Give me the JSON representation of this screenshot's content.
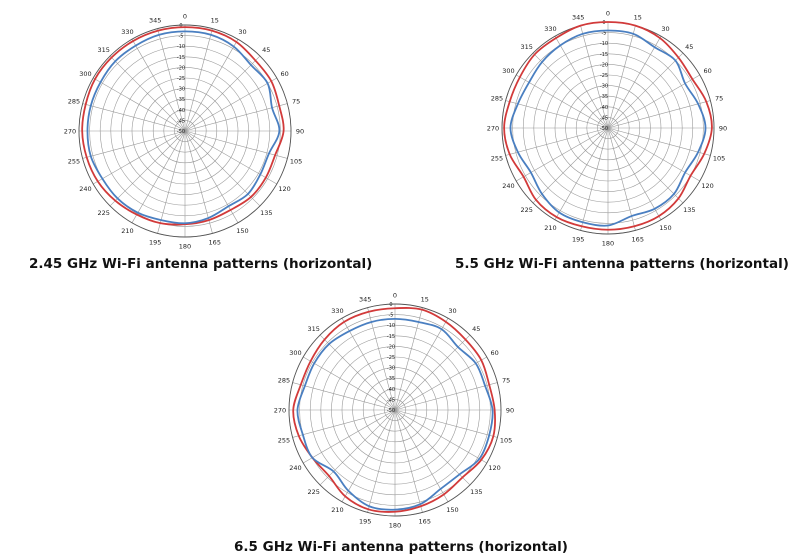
{
  "charts": {
    "0": {
      "caption": "2.45 GHz Wi-Fi antenna patterns (horizontal)"
    },
    "1": {
      "caption": "5.5 GHz Wi-Fi antenna patterns (horizontal)"
    },
    "2": {
      "caption": "6.5 GHz Wi-Fi antenna patterns (horizontal)"
    }
  },
  "chart_data": [
    {
      "type": "line",
      "subtype": "polar",
      "title": "2.45 GHz Wi-Fi antenna patterns (horizontal)",
      "angles_deg": [
        0,
        15,
        30,
        45,
        60,
        75,
        90,
        105,
        120,
        135,
        150,
        165,
        180,
        195,
        210,
        225,
        240,
        255,
        270,
        285,
        300,
        315,
        330,
        345
      ],
      "radial_ticks": [
        0,
        -5,
        -10,
        -15,
        -20,
        -25,
        -30,
        -35,
        -40,
        -45,
        -50
      ],
      "rlim": [
        -50,
        0
      ],
      "grid": true,
      "colors": [
        "#d23a3a",
        "#4a7fc1"
      ],
      "series": [
        {
          "values": [
            -1,
            -1,
            -1.5,
            -3,
            -3,
            -4,
            -3.5,
            -6,
            -6,
            -6,
            -7,
            -6.5,
            -6,
            -5,
            -4.5,
            -3.5,
            -2.5,
            -2,
            -1.5,
            -1.5,
            -1,
            -1,
            -1,
            -1
          ]
        },
        {
          "values": [
            -3,
            -3,
            -4,
            -6,
            -5,
            -7.5,
            -5.5,
            -9,
            -9,
            -8,
            -9,
            -7.5,
            -6.5,
            -6.5,
            -5.5,
            -5,
            -5,
            -4,
            -4,
            -4,
            -4,
            -3.5,
            -3.5,
            -3
          ]
        }
      ]
    },
    {
      "type": "line",
      "subtype": "polar",
      "title": "5.5 GHz Wi-Fi antenna patterns (horizontal)",
      "angles_deg": [
        0,
        15,
        30,
        45,
        60,
        75,
        90,
        105,
        120,
        135,
        150,
        165,
        180,
        195,
        210,
        225,
        240,
        255,
        270,
        285,
        300,
        315,
        330,
        345
      ],
      "radial_ticks": [
        0,
        -5,
        -10,
        -15,
        -20,
        -25,
        -30,
        -35,
        -40,
        -45,
        -50
      ],
      "rlim": [
        -50,
        0
      ],
      "grid": true,
      "colors": [
        "#d23a3a",
        "#4a7fc1"
      ],
      "series": [
        {
          "values": [
            0,
            0,
            -1,
            -3,
            -4,
            -2,
            -1,
            -3,
            -5,
            -3,
            -2,
            -2,
            -2,
            -2,
            -1.5,
            -2,
            -4,
            -2,
            -1,
            -2,
            -2,
            -1,
            -1,
            0
          ]
        },
        {
          "values": [
            -4,
            -4,
            -6,
            -5,
            -8,
            -6,
            -4,
            -6,
            -8,
            -6,
            -6,
            -7,
            -4,
            -4,
            -4,
            -6,
            -8,
            -6,
            -4,
            -6,
            -7,
            -6,
            -5,
            -4
          ]
        }
      ]
    },
    {
      "type": "line",
      "subtype": "polar",
      "title": "6.5 GHz Wi-Fi antenna patterns (horizontal)",
      "angles_deg": [
        0,
        15,
        30,
        45,
        60,
        75,
        90,
        105,
        120,
        135,
        150,
        165,
        180,
        195,
        210,
        225,
        240,
        255,
        270,
        285,
        300,
        315,
        330,
        345
      ],
      "radial_ticks": [
        0,
        -5,
        -10,
        -15,
        -20,
        -25,
        -30,
        -35,
        -40,
        -45,
        -50
      ],
      "rlim": [
        -50,
        0
      ],
      "grid": true,
      "colors": [
        "#d23a3a",
        "#4a7fc1"
      ],
      "series": [
        {
          "values": [
            -2,
            -1,
            -2,
            -3,
            -3,
            -4,
            -3,
            -2,
            -3,
            -5,
            -4,
            -3,
            -2,
            -1.5,
            -3,
            -6,
            -5,
            -3,
            -2,
            -4,
            -4,
            -3,
            -2,
            -2
          ]
        },
        {
          "values": [
            -7,
            -7,
            -6,
            -8,
            -6,
            -6,
            -4,
            -4,
            -4,
            -7,
            -7,
            -4,
            -3,
            -3,
            -6,
            -9,
            -5,
            -5,
            -4,
            -6,
            -6,
            -6,
            -7,
            -7
          ]
        }
      ]
    }
  ]
}
